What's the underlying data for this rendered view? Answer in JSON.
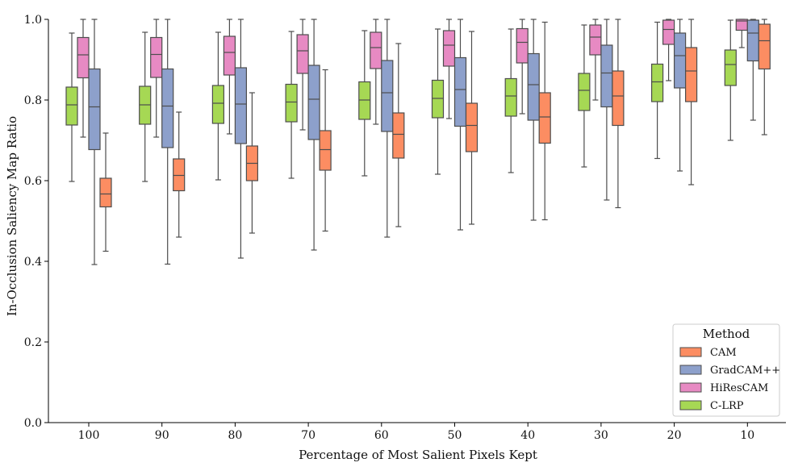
{
  "chart_data": {
    "type": "boxplot",
    "xlabel": "Percentage of Most Salient Pixels Kept",
    "ylabel": "In-Occlusion Saliency Map Ratio",
    "categories": [
      "100",
      "90",
      "80",
      "70",
      "60",
      "50",
      "40",
      "30",
      "20",
      "10"
    ],
    "ylim": [
      0.0,
      1.0
    ],
    "yticks": [
      "0.0",
      "0.2",
      "0.4",
      "0.6",
      "0.8",
      "1.0"
    ],
    "grid": false,
    "legend": {
      "title": "Method",
      "placement": "bottom-right",
      "entries": [
        "CAM",
        "GradCAM++",
        "HiResCAM",
        "C-LRP"
      ]
    },
    "series": [
      {
        "name": "C-LRP",
        "color": "#a6d854",
        "boxes": [
          {
            "whislo": 0.598,
            "q1": 0.738,
            "med": 0.788,
            "q3": 0.832,
            "whishi": 0.966
          },
          {
            "whislo": 0.598,
            "q1": 0.74,
            "med": 0.788,
            "q3": 0.834,
            "whishi": 0.968
          },
          {
            "whislo": 0.602,
            "q1": 0.742,
            "med": 0.792,
            "q3": 0.836,
            "whishi": 0.968
          },
          {
            "whislo": 0.606,
            "q1": 0.746,
            "med": 0.795,
            "q3": 0.839,
            "whishi": 0.97
          },
          {
            "whislo": 0.612,
            "q1": 0.752,
            "med": 0.8,
            "q3": 0.845,
            "whishi": 0.972
          },
          {
            "whislo": 0.616,
            "q1": 0.756,
            "med": 0.804,
            "q3": 0.849,
            "whishi": 0.976
          },
          {
            "whislo": 0.62,
            "q1": 0.76,
            "med": 0.81,
            "q3": 0.853,
            "whishi": 0.976
          },
          {
            "whislo": 0.634,
            "q1": 0.774,
            "med": 0.824,
            "q3": 0.866,
            "whishi": 0.986
          },
          {
            "whislo": 0.655,
            "q1": 0.796,
            "med": 0.845,
            "q3": 0.889,
            "whishi": 0.993
          },
          {
            "whislo": 0.7,
            "q1": 0.836,
            "med": 0.888,
            "q3": 0.924,
            "whishi": 0.998
          }
        ]
      },
      {
        "name": "HiResCAM",
        "color": "#e78ac3",
        "boxes": [
          {
            "whislo": 0.708,
            "q1": 0.855,
            "med": 0.912,
            "q3": 0.955,
            "whishi": 1.0
          },
          {
            "whislo": 0.708,
            "q1": 0.856,
            "med": 0.913,
            "q3": 0.955,
            "whishi": 1.0
          },
          {
            "whislo": 0.716,
            "q1": 0.862,
            "med": 0.918,
            "q3": 0.958,
            "whishi": 1.0
          },
          {
            "whislo": 0.726,
            "q1": 0.866,
            "med": 0.922,
            "q3": 0.962,
            "whishi": 1.0
          },
          {
            "whislo": 0.74,
            "q1": 0.878,
            "med": 0.93,
            "q3": 0.968,
            "whishi": 1.0
          },
          {
            "whislo": 0.754,
            "q1": 0.884,
            "med": 0.936,
            "q3": 0.972,
            "whishi": 1.0
          },
          {
            "whislo": 0.766,
            "q1": 0.892,
            "med": 0.943,
            "q3": 0.977,
            "whishi": 1.0
          },
          {
            "whislo": 0.8,
            "q1": 0.912,
            "med": 0.956,
            "q3": 0.986,
            "whishi": 1.0
          },
          {
            "whislo": 0.848,
            "q1": 0.938,
            "med": 0.975,
            "q3": 0.998,
            "whishi": 1.0
          },
          {
            "whislo": 0.93,
            "q1": 0.973,
            "med": 0.996,
            "q3": 1.0,
            "whishi": 1.0
          }
        ]
      },
      {
        "name": "GradCAM++",
        "color": "#8da0cb",
        "boxes": [
          {
            "whislo": 0.392,
            "q1": 0.677,
            "med": 0.783,
            "q3": 0.877,
            "whishi": 1.0
          },
          {
            "whislo": 0.393,
            "q1": 0.682,
            "med": 0.785,
            "q3": 0.877,
            "whishi": 1.0
          },
          {
            "whislo": 0.408,
            "q1": 0.692,
            "med": 0.79,
            "q3": 0.88,
            "whishi": 1.0
          },
          {
            "whislo": 0.428,
            "q1": 0.702,
            "med": 0.802,
            "q3": 0.886,
            "whishi": 1.0
          },
          {
            "whislo": 0.46,
            "q1": 0.722,
            "med": 0.818,
            "q3": 0.898,
            "whishi": 1.0
          },
          {
            "whislo": 0.478,
            "q1": 0.735,
            "med": 0.826,
            "q3": 0.905,
            "whishi": 1.0
          },
          {
            "whislo": 0.502,
            "q1": 0.75,
            "med": 0.838,
            "q3": 0.915,
            "whishi": 1.0
          },
          {
            "whislo": 0.552,
            "q1": 0.783,
            "med": 0.867,
            "q3": 0.936,
            "whishi": 1.0
          },
          {
            "whislo": 0.624,
            "q1": 0.83,
            "med": 0.91,
            "q3": 0.966,
            "whishi": 1.0
          },
          {
            "whislo": 0.75,
            "q1": 0.897,
            "med": 0.966,
            "q3": 0.998,
            "whishi": 1.0
          }
        ]
      },
      {
        "name": "CAM",
        "color": "#fc8d62",
        "boxes": [
          {
            "whislo": 0.425,
            "q1": 0.535,
            "med": 0.567,
            "q3": 0.606,
            "whishi": 0.718
          },
          {
            "whislo": 0.46,
            "q1": 0.575,
            "med": 0.613,
            "q3": 0.654,
            "whishi": 0.77
          },
          {
            "whislo": 0.47,
            "q1": 0.6,
            "med": 0.643,
            "q3": 0.686,
            "whishi": 0.818
          },
          {
            "whislo": 0.475,
            "q1": 0.626,
            "med": 0.677,
            "q3": 0.724,
            "whishi": 0.875
          },
          {
            "whislo": 0.486,
            "q1": 0.656,
            "med": 0.715,
            "q3": 0.768,
            "whishi": 0.94
          },
          {
            "whislo": 0.492,
            "q1": 0.672,
            "med": 0.737,
            "q3": 0.792,
            "whishi": 0.97
          },
          {
            "whislo": 0.503,
            "q1": 0.693,
            "med": 0.758,
            "q3": 0.818,
            "whishi": 0.993
          },
          {
            "whislo": 0.533,
            "q1": 0.737,
            "med": 0.81,
            "q3": 0.872,
            "whishi": 1.0
          },
          {
            "whislo": 0.59,
            "q1": 0.796,
            "med": 0.872,
            "q3": 0.93,
            "whishi": 1.0
          },
          {
            "whislo": 0.714,
            "q1": 0.877,
            "med": 0.947,
            "q3": 0.988,
            "whishi": 1.0
          }
        ]
      }
    ]
  }
}
